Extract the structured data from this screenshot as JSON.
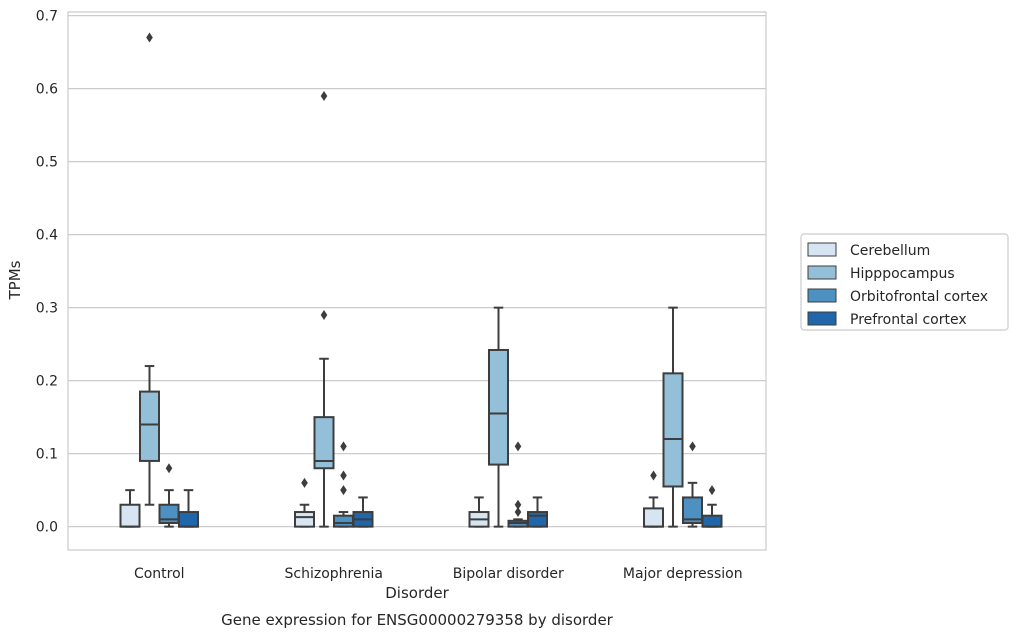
{
  "chart_data": {
    "type": "box",
    "caption": "Gene expression for ENSG00000279358 by disorder",
    "xlabel": "Disorder",
    "ylabel": "TPMs",
    "ylim": [
      -0.032,
      0.705
    ],
    "yticks": [
      0.0,
      0.1,
      0.2,
      0.3,
      0.4,
      0.5,
      0.6,
      0.7
    ],
    "ytick_labels": [
      "0.0",
      "0.1",
      "0.2",
      "0.3",
      "0.4",
      "0.5",
      "0.6",
      "0.7"
    ],
    "grid": "horizontal",
    "legend_position": "right",
    "categories": [
      "Control",
      "Schizophrenia",
      "Bipolar disorder",
      "Major depression"
    ],
    "series": [
      {
        "name": "Cerebellum",
        "color": "#d7e5f3",
        "boxes": [
          {
            "whisker_low": 0.0,
            "q1": 0.0,
            "median": 0.0,
            "q3": 0.03,
            "whisker_high": 0.05,
            "outliers": []
          },
          {
            "whisker_low": 0.0,
            "q1": 0.0,
            "median": 0.013,
            "q3": 0.02,
            "whisker_high": 0.03,
            "outliers": [
              0.06
            ]
          },
          {
            "whisker_low": 0.0,
            "q1": 0.0,
            "median": 0.01,
            "q3": 0.02,
            "whisker_high": 0.04,
            "outliers": []
          },
          {
            "whisker_low": 0.0,
            "q1": 0.0,
            "median": 0.0,
            "q3": 0.025,
            "whisker_high": 0.04,
            "outliers": [
              0.07
            ]
          }
        ]
      },
      {
        "name": "Hipppocampus",
        "color": "#93bfd9",
        "boxes": [
          {
            "whisker_low": 0.03,
            "q1": 0.09,
            "median": 0.14,
            "q3": 0.185,
            "whisker_high": 0.22,
            "outliers": [
              0.67
            ]
          },
          {
            "whisker_low": 0.0,
            "q1": 0.08,
            "median": 0.09,
            "q3": 0.15,
            "whisker_high": 0.23,
            "outliers": [
              0.29,
              0.59
            ]
          },
          {
            "whisker_low": 0.0,
            "q1": 0.085,
            "median": 0.155,
            "q3": 0.242,
            "whisker_high": 0.3,
            "outliers": []
          },
          {
            "whisker_low": 0.0,
            "q1": 0.055,
            "median": 0.12,
            "q3": 0.21,
            "whisker_high": 0.3,
            "outliers": []
          }
        ]
      },
      {
        "name": "Orbitofrontal cortex",
        "color": "#4d91c2",
        "boxes": [
          {
            "whisker_low": 0.0,
            "q1": 0.005,
            "median": 0.01,
            "q3": 0.03,
            "whisker_high": 0.05,
            "outliers": [
              0.08
            ]
          },
          {
            "whisker_low": 0.0,
            "q1": 0.0,
            "median": 0.005,
            "q3": 0.015,
            "whisker_high": 0.02,
            "outliers": [
              0.05,
              0.07,
              0.11
            ]
          },
          {
            "whisker_low": 0.0,
            "q1": 0.0,
            "median": 0.005,
            "q3": 0.008,
            "whisker_high": 0.01,
            "outliers": [
              0.02,
              0.03,
              0.11
            ]
          },
          {
            "whisker_low": 0.0,
            "q1": 0.005,
            "median": 0.01,
            "q3": 0.04,
            "whisker_high": 0.06,
            "outliers": [
              0.11
            ]
          }
        ]
      },
      {
        "name": "Prefrontal cortex",
        "color": "#1f67aa",
        "boxes": [
          {
            "whisker_low": 0.0,
            "q1": 0.0,
            "median": 0.0,
            "q3": 0.02,
            "whisker_high": 0.05,
            "outliers": []
          },
          {
            "whisker_low": 0.0,
            "q1": 0.0,
            "median": 0.01,
            "q3": 0.02,
            "whisker_high": 0.04,
            "outliers": []
          },
          {
            "whisker_low": 0.0,
            "q1": 0.0,
            "median": 0.015,
            "q3": 0.02,
            "whisker_high": 0.04,
            "outliers": []
          },
          {
            "whisker_low": 0.0,
            "q1": 0.0,
            "median": 0.0,
            "q3": 0.015,
            "whisker_high": 0.03,
            "outliers": [
              0.05
            ]
          }
        ]
      }
    ]
  }
}
